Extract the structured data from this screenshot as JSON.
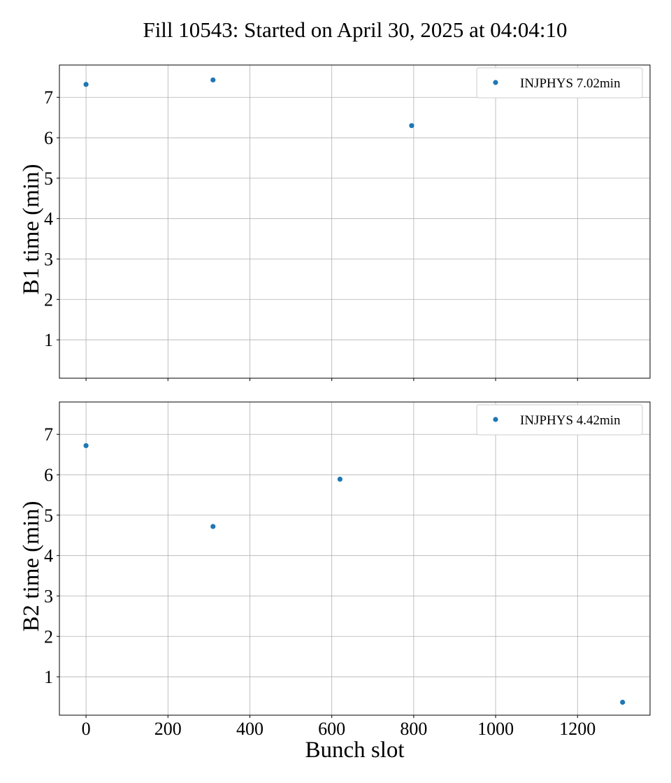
{
  "figure": {
    "title": "Fill 10543: Started on April 30, 2025 at 04:04:10",
    "marker_color": "#1f77b4",
    "grid": true,
    "legend_position": "top-right"
  },
  "chart_data": [
    {
      "type": "scatter",
      "panel": "top",
      "ylabel": "B1 time (min)",
      "xlabel": "",
      "xlim": [
        -65,
        1377
      ],
      "ylim": [
        0.05,
        7.8
      ],
      "xticks": [
        0,
        200,
        400,
        600,
        800,
        1000,
        1200
      ],
      "yticks": [
        1,
        2,
        3,
        4,
        5,
        6,
        7
      ],
      "show_xticklabels": false,
      "series": [
        {
          "name": "INJPHYS 7.02min",
          "color": "#1f77b4",
          "points": [
            {
              "x": 0,
              "y": 7.32
            },
            {
              "x": 310,
              "y": 7.43
            },
            {
              "x": 795,
              "y": 6.3
            }
          ]
        }
      ]
    },
    {
      "type": "scatter",
      "panel": "bottom",
      "ylabel": "B2 time (min)",
      "xlabel": "Bunch slot",
      "xlim": [
        -65,
        1377
      ],
      "ylim": [
        0.05,
        7.8
      ],
      "xticks": [
        0,
        200,
        400,
        600,
        800,
        1000,
        1200
      ],
      "yticks": [
        1,
        2,
        3,
        4,
        5,
        6,
        7
      ],
      "show_xticklabels": true,
      "series": [
        {
          "name": "INJPHYS 4.42min",
          "color": "#1f77b4",
          "points": [
            {
              "x": 0,
              "y": 6.72
            },
            {
              "x": 310,
              "y": 4.72
            },
            {
              "x": 620,
              "y": 5.89
            },
            {
              "x": 1310,
              "y": 0.37
            }
          ]
        }
      ]
    }
  ]
}
